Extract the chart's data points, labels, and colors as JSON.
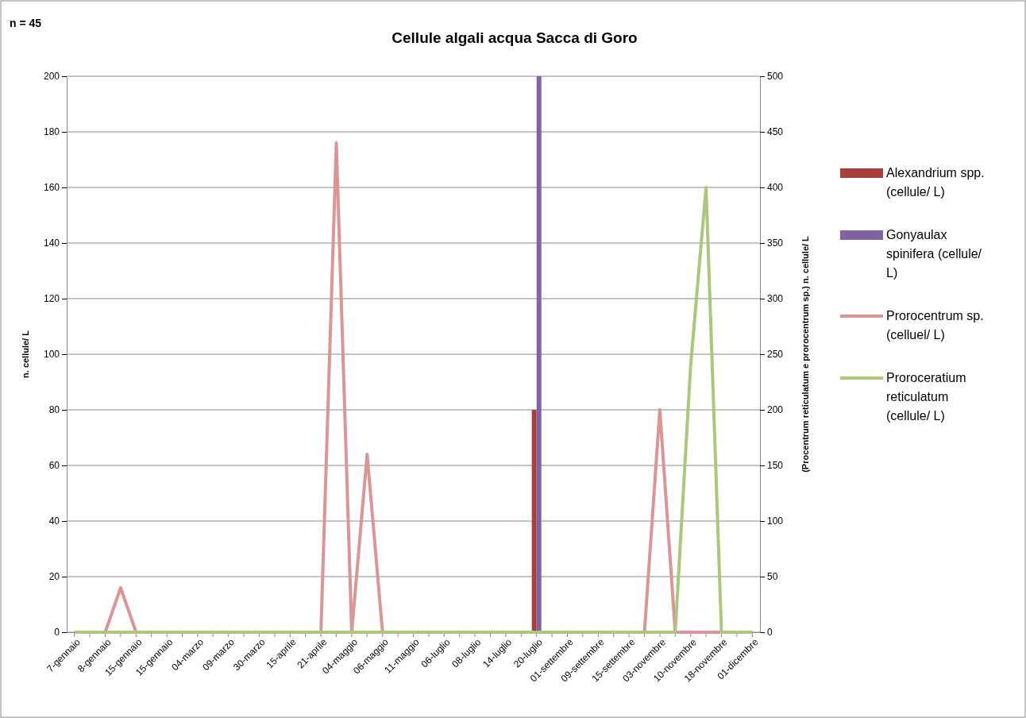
{
  "chart_data": {
    "type": "line",
    "title": "Cellule algali acqua Sacca di Goro",
    "annotations": [
      "n = 45"
    ],
    "ylabel": "n. cellule/ L",
    "y2label": "(Procentrum reticulatum e prorocentrum sp.) n. cellule/ L",
    "categories": [
      "7-gennaio",
      null,
      "8-gennaio",
      null,
      "15-gennaio",
      null,
      "15-gennaio",
      null,
      "04-marzo",
      null,
      "09-marzo",
      null,
      "30-marzo",
      null,
      "15-aprile",
      null,
      "21-aprile",
      null,
      "04-maggio",
      null,
      "06-maggio",
      null,
      "11-maggio",
      null,
      "06-luglio",
      null,
      "08-luglio",
      null,
      "14-luglio",
      null,
      "20-luglio",
      null,
      "01-settembre",
      null,
      "09-settembre",
      null,
      "15-settembre",
      null,
      "03-novembre",
      null,
      "10-novembre",
      null,
      "18-novembre",
      null,
      "01-dicembre"
    ],
    "series": [
      {
        "name": "Alexandrium spp. (cellule/ L)",
        "type": "bar",
        "color": "#a5403c",
        "values": [
          0,
          0,
          0,
          0,
          0,
          0,
          0,
          0,
          0,
          0,
          0,
          0,
          0,
          0,
          0,
          0,
          0,
          0,
          0,
          0,
          0,
          0,
          0,
          0,
          0,
          0,
          0,
          0,
          0,
          0,
          80,
          0,
          0,
          0,
          0,
          0,
          0,
          0,
          0,
          0,
          0,
          0,
          0,
          0,
          0
        ]
      },
      {
        "name": "Gonyaulax spinifera (cellule/ L)",
        "type": "bar",
        "color": "#8064a2",
        "values": [
          0,
          0,
          0,
          0,
          0,
          0,
          0,
          0,
          0,
          0,
          0,
          0,
          0,
          0,
          0,
          0,
          0,
          0,
          0,
          0,
          0,
          0,
          0,
          0,
          0,
          0,
          0,
          0,
          0,
          0,
          200,
          0,
          0,
          0,
          0,
          0,
          0,
          0,
          0,
          0,
          0,
          0,
          0,
          0,
          0
        ]
      },
      {
        "name": "Prorocentrum sp. (celluel/ L)",
        "axis": "y2",
        "color": "#d99694",
        "values": [
          0,
          0,
          0,
          40,
          0,
          0,
          0,
          0,
          0,
          0,
          0,
          0,
          0,
          0,
          0,
          0,
          0,
          440,
          0,
          160,
          0,
          0,
          0,
          0,
          0,
          0,
          0,
          0,
          0,
          0,
          0,
          0,
          0,
          0,
          0,
          0,
          0,
          0,
          200,
          0,
          0,
          0,
          0,
          0,
          0
        ]
      },
      {
        "name": "Proroceratium reticulatum (cellule/ L)",
        "axis": "y2",
        "color": "#aac77d",
        "values": [
          0,
          0,
          0,
          0,
          0,
          0,
          0,
          0,
          0,
          0,
          0,
          0,
          0,
          0,
          0,
          0,
          0,
          0,
          0,
          0,
          0,
          0,
          0,
          0,
          0,
          0,
          0,
          0,
          0,
          0,
          0,
          0,
          0,
          0,
          0,
          0,
          0,
          0,
          0,
          0,
          240,
          400,
          0,
          0,
          0
        ]
      }
    ],
    "ylim": [
      0,
      200
    ],
    "yticks": [
      0,
      20,
      40,
      60,
      80,
      100,
      120,
      140,
      160,
      180,
      200
    ],
    "y2lim": [
      0,
      500
    ],
    "y2ticks": [
      0,
      50,
      100,
      150,
      200,
      250,
      300,
      350,
      400,
      450,
      500
    ],
    "grid": "y",
    "legend": "right",
    "marker": "none",
    "line_style": "solid"
  }
}
